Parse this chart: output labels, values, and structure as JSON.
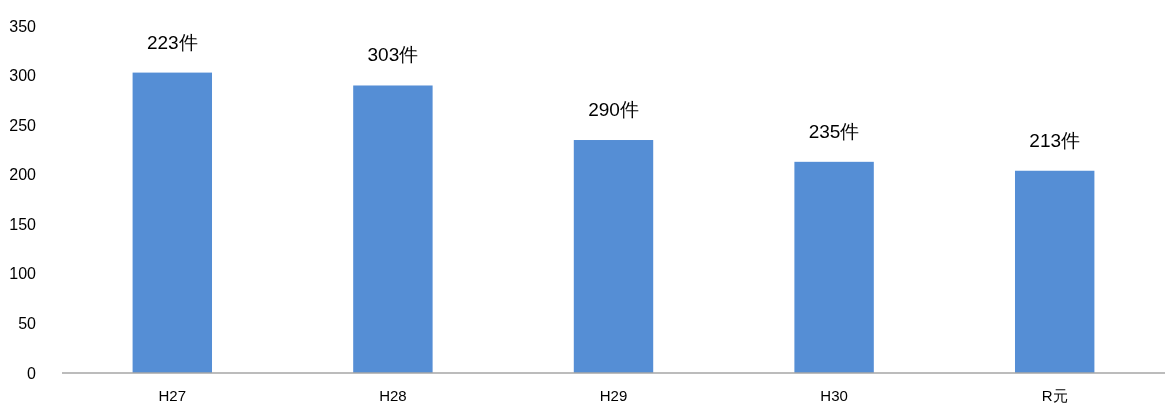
{
  "chart_data": {
    "type": "bar",
    "categories": [
      "H27",
      "H28",
      "H29",
      "H30",
      "R元"
    ],
    "values": [
      303,
      290,
      235,
      213,
      204
    ],
    "color": "#558ed5",
    "annotations": [
      "223件",
      "303件",
      "290件",
      "235件",
      "213件"
    ],
    "ylim": [
      0,
      350
    ],
    "yticks": [
      0,
      50,
      100,
      150,
      200,
      250,
      300,
      350
    ],
    "grid": false
  }
}
